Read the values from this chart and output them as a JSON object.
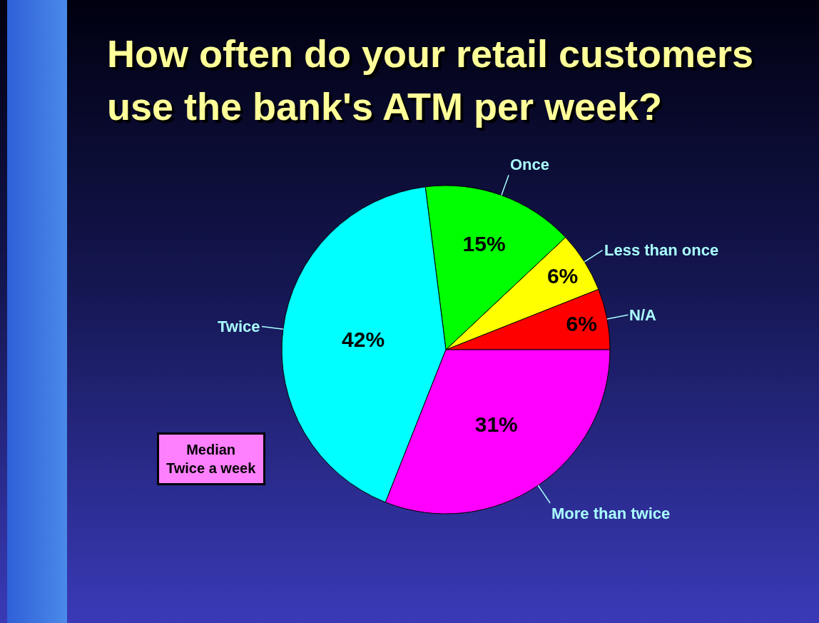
{
  "chart_data": {
    "type": "pie",
    "title": "How often do your retail customers use the bank's ATM per week?",
    "categories": [
      "N/A",
      "Less than once",
      "Once",
      "Twice",
      "More than twice"
    ],
    "values": [
      6,
      6,
      15,
      42,
      31
    ],
    "value_labels": [
      "6%",
      "6%",
      "15%",
      "42%",
      "31%"
    ],
    "colors": [
      "#ff0000",
      "#ffff00",
      "#00ff00",
      "#00ffff",
      "#ff00ff"
    ],
    "legend": false,
    "annotations": [
      "Median\nTwice a week"
    ]
  }
}
